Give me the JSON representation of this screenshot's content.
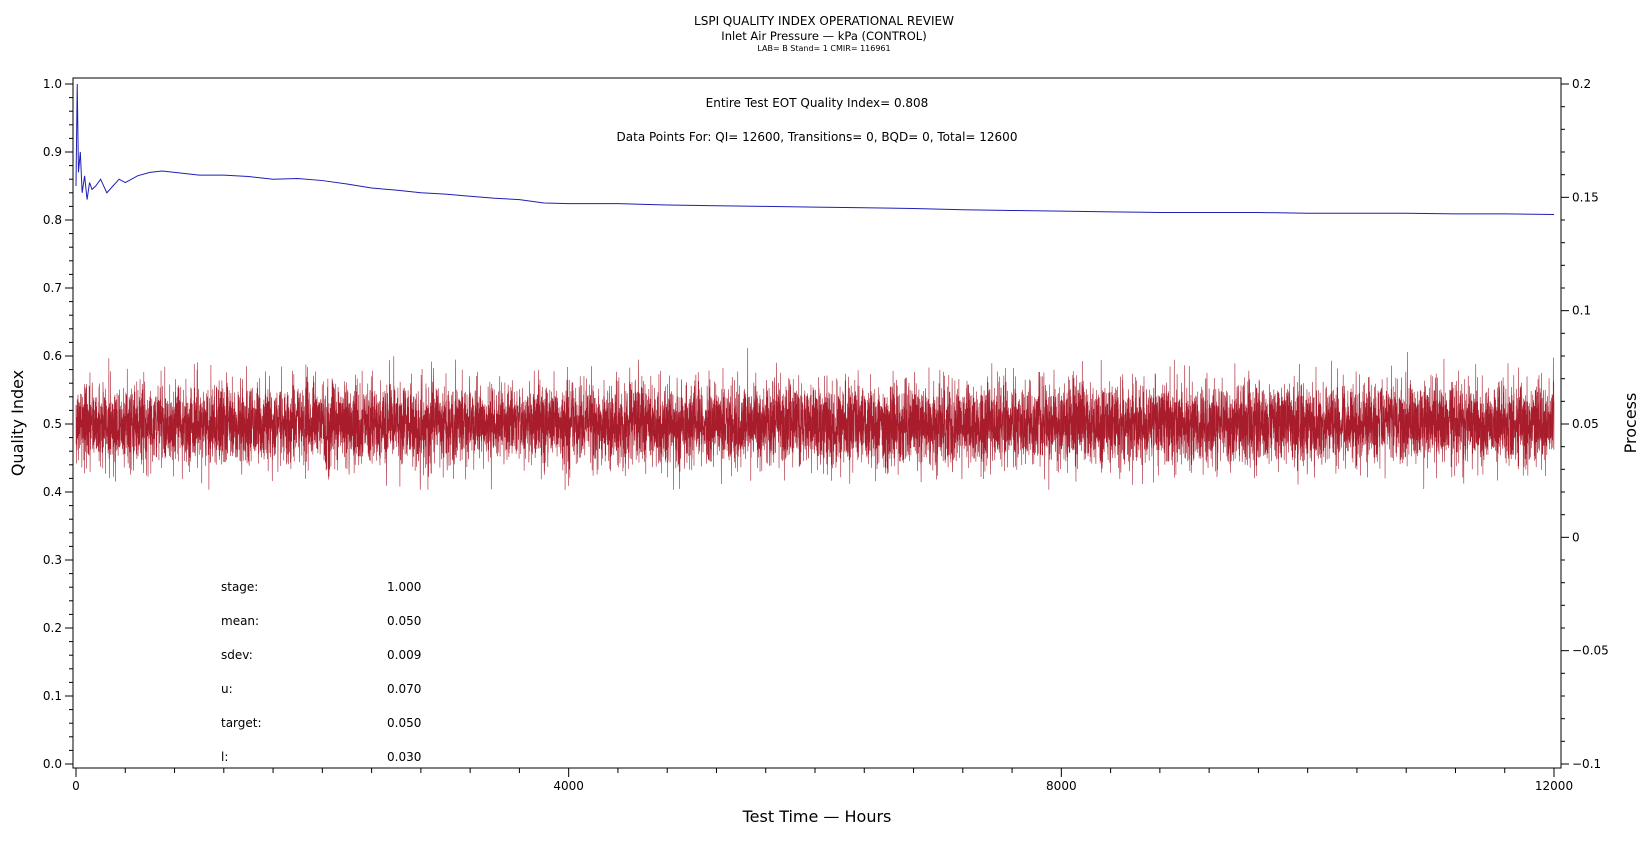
{
  "chart_data": {
    "type": "line",
    "title": "LSPI QUALITY INDEX OPERATIONAL REVIEW",
    "subtitle": "Inlet Air Pressure — kPa (CONTROL)",
    "subsubtitle": "LAB= B Stand= 1 CMIR= 116961",
    "xlabel": "Test Time — Hours",
    "ylabel_left": "Quality Index",
    "ylabel_right": "Process",
    "xlim": [
      0,
      12000
    ],
    "ylim_left": [
      0,
      1
    ],
    "ylim_right": [
      -0.1,
      0.2
    ],
    "x_ticks": [
      "0",
      "4000",
      "8000",
      "12000"
    ],
    "y_left_ticks": [
      "0.0",
      "0.1",
      "0.2",
      "0.3",
      "0.4",
      "0.5",
      "0.6",
      "0.7",
      "0.8",
      "0.9",
      "1.0"
    ],
    "y_right_ticks": [
      "−0.1",
      "−0.05",
      "0",
      "0.05",
      "0.1",
      "0.15",
      "0.2"
    ],
    "annotation_quality": "Entire Test EOT Quality Index=   0.808",
    "annotation_points": "Data Points For: QI= 12600, Transitions=     0, BQD=     0, Total= 12600",
    "stats": [
      {
        "label": "stage:",
        "value": "1.000"
      },
      {
        "label": "mean:",
        "value": "0.050"
      },
      {
        "label": "sdev:",
        "value": "0.009"
      },
      {
        "label": "u:",
        "value": "0.070"
      },
      {
        "label": "target:",
        "value": "0.050"
      },
      {
        "label": "l:",
        "value": "0.030"
      }
    ],
    "series": [
      {
        "axis": "left",
        "color": "#1f1fb4",
        "x": [
          0,
          10,
          20,
          35,
          50,
          70,
          90,
          110,
          130,
          160,
          200,
          250,
          300,
          350,
          400,
          500,
          600,
          700,
          800,
          900,
          1000,
          1200,
          1400,
          1600,
          1800,
          2000,
          2200,
          2400,
          2600,
          2800,
          3000,
          3200,
          3400,
          3600,
          3800,
          4000,
          4400,
          4800,
          5200,
          5600,
          6000,
          6400,
          6800,
          7200,
          7600,
          8000,
          8400,
          8800,
          9200,
          9600,
          10000,
          10400,
          10800,
          11200,
          11600,
          12000
        ],
        "y": [
          0.85,
          1.0,
          0.87,
          0.9,
          0.84,
          0.865,
          0.83,
          0.855,
          0.845,
          0.85,
          0.86,
          0.84,
          0.85,
          0.86,
          0.855,
          0.865,
          0.87,
          0.872,
          0.87,
          0.868,
          0.866,
          0.866,
          0.864,
          0.86,
          0.861,
          0.858,
          0.853,
          0.847,
          0.844,
          0.84,
          0.838,
          0.835,
          0.832,
          0.83,
          0.825,
          0.824,
          0.824,
          0.822,
          0.821,
          0.82,
          0.819,
          0.818,
          0.817,
          0.815,
          0.814,
          0.813,
          0.812,
          0.811,
          0.811,
          0.811,
          0.81,
          0.81,
          0.81,
          0.809,
          0.809,
          0.808
        ]
      },
      {
        "axis": "right",
        "color": "#a81c2c",
        "n_points": 12600,
        "mean": 0.05,
        "sdev": 0.009,
        "min": 0.021,
        "max": 0.084
      }
    ],
    "grid": false,
    "legend": "none"
  }
}
